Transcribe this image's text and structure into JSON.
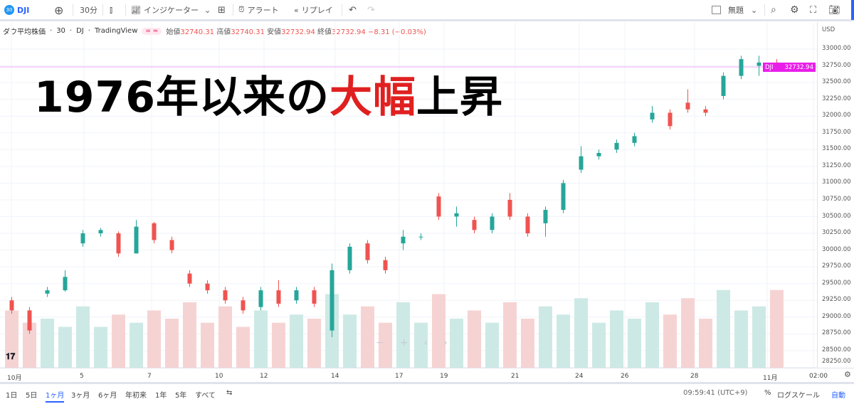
{
  "toolbar": {
    "symbol_badge": "30",
    "symbol": "DJI",
    "interval": "30分",
    "indicators": "インジケーター",
    "alert": "アラート",
    "replay": "リプレイ",
    "layout_name": "無題",
    "icons": [
      "plus-circle-icon",
      "candles-icon",
      "indicators-icon",
      "templates-icon",
      "alarm-clock-icon",
      "replay-icon",
      "undo-icon",
      "redo-icon",
      "layout-square-icon",
      "search-icon",
      "gear-icon",
      "fullscreen-icon",
      "camera-icon"
    ]
  },
  "legend": {
    "name": "ダウ平均株価",
    "interval": "30",
    "exchange": "DJ",
    "source": "TradingView",
    "pill": "= ≈",
    "open_label": "始値",
    "open": "32740.31",
    "high_label": "高値",
    "high": "32740.31",
    "low_label": "安値",
    "low": "32732.94",
    "close_label": "終値",
    "close": "32732.94",
    "change": "−8.31 (−0.03%)"
  },
  "headline": {
    "part1": "1976年以来の",
    "part2": "大幅",
    "part3": "上昇",
    "accent": "#e02020"
  },
  "price_axis": {
    "currency": "USD",
    "last_symbol": "DJI",
    "last_price": "32732.94",
    "last_color": "#e91ee9"
  },
  "bottom": {
    "ranges": [
      "1日",
      "5日",
      "1ヶ月",
      "3ヶ月",
      "6ヶ月",
      "年初来",
      "1年",
      "5年",
      "すべて"
    ],
    "active_range": "1ヶ月",
    "clock": "09:59:41 (UTC+9)",
    "percent": "%",
    "log": "ログスケール",
    "auto": "自動"
  },
  "chart_data": {
    "type": "candlestick",
    "ylim": [
      28250,
      33000
    ],
    "y_ticks": [
      "33000.00",
      "32750.00",
      "32500.00",
      "32250.00",
      "32000.00",
      "31750.00",
      "31500.00",
      "31250.00",
      "31000.00",
      "30750.00",
      "30500.00",
      "30250.00",
      "30000.00",
      "29750.00",
      "29500.00",
      "29250.00",
      "29000.00",
      "28750.00",
      "28500.00",
      "28250.00"
    ],
    "x_ticks": [
      "10月",
      "5",
      "7",
      "10",
      "12",
      "14",
      "17",
      "19",
      "21",
      "24",
      "26",
      "28",
      "11月",
      "02:00"
    ],
    "up_color": "#26a69a",
    "down_color": "#ef5350",
    "grid": true,
    "candles": [
      [
        29250,
        29300,
        29050,
        29100
      ],
      [
        29100,
        29150,
        28750,
        28800
      ],
      [
        29350,
        29450,
        29300,
        29400
      ],
      [
        29400,
        29700,
        29380,
        29600
      ],
      [
        30100,
        30300,
        30050,
        30250
      ],
      [
        30250,
        30330,
        30200,
        30300
      ],
      [
        30250,
        30280,
        29900,
        29950
      ],
      [
        29950,
        30450,
        29950,
        30350
      ],
      [
        30400,
        30420,
        30100,
        30150
      ],
      [
        30150,
        30200,
        29950,
        30000
      ],
      [
        29650,
        29700,
        29450,
        29500
      ],
      [
        29500,
        29550,
        29350,
        29400
      ],
      [
        29400,
        29450,
        29200,
        29250
      ],
      [
        29250,
        29300,
        29050,
        29100
      ],
      [
        29150,
        29450,
        29100,
        29400
      ],
      [
        29400,
        29550,
        29150,
        29200
      ],
      [
        29250,
        29450,
        29200,
        29400
      ],
      [
        29400,
        29450,
        29150,
        29200
      ],
      [
        28800,
        29800,
        28700,
        29700
      ],
      [
        29700,
        30100,
        29650,
        30050
      ],
      [
        30100,
        30150,
        29800,
        29850
      ],
      [
        29850,
        29900,
        29650,
        29700
      ],
      [
        30100,
        30300,
        30000,
        30200
      ],
      [
        30200,
        30250,
        30150,
        30200
      ],
      [
        30800,
        30850,
        30450,
        30500
      ],
      [
        30500,
        30650,
        30350,
        30550
      ],
      [
        30450,
        30500,
        30250,
        30300
      ],
      [
        30300,
        30550,
        30250,
        30500
      ],
      [
        30750,
        30850,
        30450,
        30500
      ],
      [
        30500,
        30550,
        30200,
        30250
      ],
      [
        30400,
        30650,
        30200,
        30600
      ],
      [
        30600,
        31050,
        30550,
        31000
      ],
      [
        31200,
        31550,
        31150,
        31400
      ],
      [
        31400,
        31500,
        31350,
        31450
      ],
      [
        31500,
        31650,
        31450,
        31600
      ],
      [
        31600,
        31750,
        31550,
        31700
      ],
      [
        31950,
        32150,
        31900,
        32050
      ],
      [
        32050,
        32100,
        31800,
        31850
      ],
      [
        32200,
        32400,
        32050,
        32100
      ],
      [
        32100,
        32150,
        32000,
        32050
      ],
      [
        32300,
        32650,
        32250,
        32600
      ],
      [
        32600,
        32900,
        32550,
        32850
      ],
      [
        32750,
        32900,
        32600,
        32800
      ],
      [
        32800,
        32850,
        32700,
        32732.94
      ]
    ],
    "volume": [
      70,
      55,
      60,
      50,
      75,
      50,
      65,
      55,
      70,
      60,
      80,
      55,
      75,
      50,
      70,
      55,
      65,
      60,
      90,
      65,
      75,
      55,
      80,
      55,
      90,
      60,
      70,
      55,
      80,
      60,
      75,
      65,
      85,
      55,
      70,
      60,
      80,
      65,
      85,
      60,
      95,
      70,
      75,
      95
    ]
  }
}
